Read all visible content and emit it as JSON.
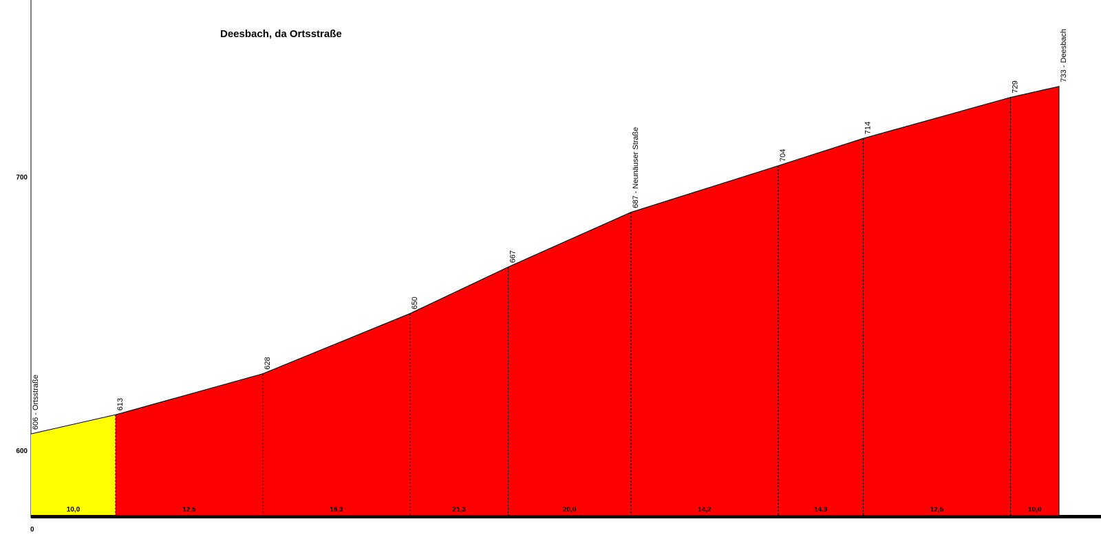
{
  "chart_data": {
    "type": "area",
    "title": "Deesbach, da Ortsstraße",
    "ylim": [
      570,
      763
    ],
    "yticks": [
      600,
      700
    ],
    "xticks": [
      0
    ],
    "distances": [
      0,
      0.31,
      0.85,
      1.39,
      1.75,
      2.2,
      2.74,
      3.052,
      3.592,
      3.77
    ],
    "elevations": [
      606,
      613,
      628,
      650,
      667,
      687,
      704,
      714,
      729,
      733
    ],
    "point_labels": [
      "606 - Ortsstraße",
      "613",
      "628",
      "650",
      "667",
      "687 - Neunäuser Straße",
      "704",
      "714",
      "729",
      "733 - Deesbach"
    ],
    "segments": [
      {
        "label": "10,0",
        "color": "#ffff00"
      },
      {
        "label": "12,5",
        "color": "#ff0000"
      },
      {
        "label": "18,3",
        "color": "#ff0000"
      },
      {
        "label": "21,3",
        "color": "#ff0000"
      },
      {
        "label": "20,0",
        "color": "#ff0000"
      },
      {
        "label": "14,2",
        "color": "#ff0000"
      },
      {
        "label": "14,3",
        "color": "#ff0000"
      },
      {
        "label": "12,5",
        "color": "#ff0000"
      },
      {
        "label": "10,0",
        "color": "#ff0000"
      }
    ],
    "grid": false
  }
}
